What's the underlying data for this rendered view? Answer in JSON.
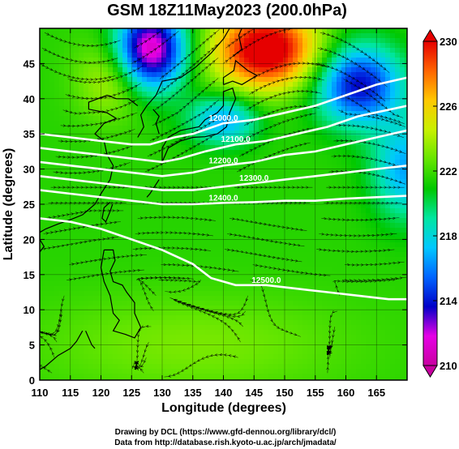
{
  "title": "GSM 18Z11May2023 (200.0hPa)",
  "credits": {
    "line1": "Drawing by DCL (https://www.gfd-dennou.org/library/dcl/)",
    "line2": "Data from http://database.rish.kyoto-u.ac.jp/arch/jmadata/"
  },
  "chart_data": {
    "type": "heatmap",
    "title": "GSM 18Z11May2023 (200.0hPa)",
    "xlabel": "Longitude (degrees)",
    "ylabel": "Latitude  (degrees)",
    "xlim": [
      110,
      170
    ],
    "ylim": [
      0,
      50
    ],
    "xticks": [
      110,
      115,
      120,
      125,
      130,
      135,
      140,
      145,
      150,
      155,
      160,
      165
    ],
    "yticks": [
      0,
      5,
      10,
      15,
      20,
      25,
      30,
      35,
      40,
      45
    ],
    "colorbar": {
      "min": 210,
      "max": 230,
      "ticks": [
        210,
        214,
        218,
        222,
        226,
        230
      ],
      "colors": [
        "#c800a0",
        "#e600e6",
        "#0000c8",
        "#0064ff",
        "#00c8ff",
        "#00e6a0",
        "#00c800",
        "#64e600",
        "#c8f000",
        "#ffc800",
        "#ff6400",
        "#e60000"
      ]
    },
    "contours": [
      {
        "label": "12000.0",
        "points": [
          [
            110,
            35
          ],
          [
            115,
            34.5
          ],
          [
            120,
            34
          ],
          [
            125,
            33.5
          ],
          [
            128,
            33.5
          ],
          [
            132,
            34.5
          ],
          [
            135,
            35
          ],
          [
            140,
            36.5
          ],
          [
            145,
            37
          ],
          [
            150,
            38
          ],
          [
            155,
            39
          ],
          [
            160,
            40.5
          ],
          [
            165,
            42
          ],
          [
            170,
            43
          ]
        ]
      },
      {
        "label": "12100.0",
        "points": [
          [
            110,
            33
          ],
          [
            115,
            32.5
          ],
          [
            120,
            32
          ],
          [
            125,
            31.5
          ],
          [
            130,
            31
          ],
          [
            133,
            31.5
          ],
          [
            137,
            32.5
          ],
          [
            142,
            33.5
          ],
          [
            147,
            34
          ],
          [
            152,
            35
          ],
          [
            157,
            36
          ],
          [
            162,
            37.5
          ],
          [
            170,
            39
          ]
        ]
      },
      {
        "label": "12200.0",
        "points": [
          [
            110,
            31
          ],
          [
            115,
            30.5
          ],
          [
            120,
            30
          ],
          [
            125,
            29.5
          ],
          [
            130,
            29
          ],
          [
            135,
            29.5
          ],
          [
            140,
            30.5
          ],
          [
            145,
            31
          ],
          [
            150,
            32
          ],
          [
            155,
            32.5
          ],
          [
            160,
            33.5
          ],
          [
            165,
            34.5
          ],
          [
            170,
            35.5
          ]
        ]
      },
      {
        "label": "12300.0",
        "points": [
          [
            110,
            29
          ],
          [
            115,
            28.5
          ],
          [
            120,
            28
          ],
          [
            125,
            27.5
          ],
          [
            130,
            27
          ],
          [
            135,
            27
          ],
          [
            140,
            27.5
          ],
          [
            145,
            28
          ],
          [
            150,
            28.5
          ],
          [
            155,
            29
          ],
          [
            160,
            29.5
          ],
          [
            165,
            30
          ],
          [
            170,
            30.5
          ]
        ]
      },
      {
        "label": "12400.0",
        "points": [
          [
            110,
            27
          ],
          [
            115,
            26.5
          ],
          [
            120,
            26
          ],
          [
            125,
            25.5
          ],
          [
            130,
            25
          ],
          [
            135,
            25
          ],
          [
            140,
            25.2
          ],
          [
            145,
            25.3
          ],
          [
            150,
            25.5
          ],
          [
            155,
            25.5
          ],
          [
            160,
            25.8
          ],
          [
            165,
            26
          ],
          [
            170,
            26.2
          ]
        ]
      },
      {
        "label": "12500.0",
        "points": [
          [
            110,
            23
          ],
          [
            115,
            22.5
          ],
          [
            120,
            21.5
          ],
          [
            125,
            20
          ],
          [
            130,
            18.5
          ],
          [
            135,
            16.5
          ],
          [
            138,
            14.5
          ],
          [
            142,
            13.5
          ],
          [
            147,
            13.5
          ],
          [
            152,
            13
          ],
          [
            157,
            12.5
          ],
          [
            162,
            12
          ],
          [
            167,
            11.5
          ],
          [
            170,
            11.5
          ]
        ]
      }
    ]
  }
}
